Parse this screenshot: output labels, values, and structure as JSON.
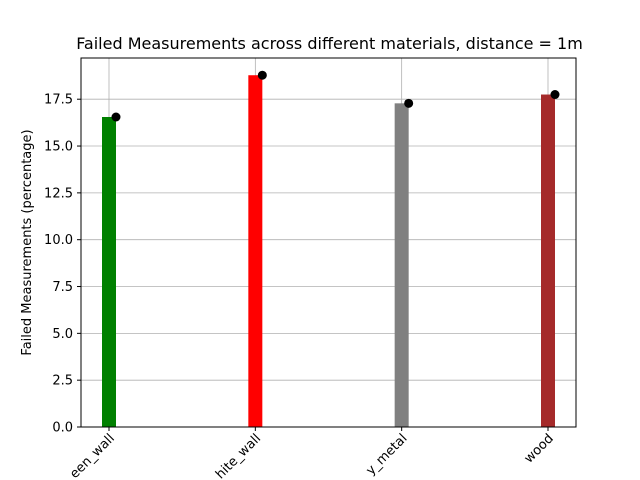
{
  "chart_data": {
    "type": "bar",
    "title": "Failed Measurements across different materials, distance = 1m",
    "xlabel": "",
    "ylabel": "Failed Measurements (percentage)",
    "categories": [
      "green_wall",
      "white_wall",
      "gray_metal",
      "wood"
    ],
    "x_tick_labels_visible": [
      "een_wall",
      "hite_wall",
      "y_metal",
      "wood"
    ],
    "values": [
      16.55,
      18.78,
      17.28,
      17.75
    ],
    "markers": [
      16.55,
      18.78,
      17.28,
      17.75
    ],
    "bar_colors": [
      "#008000",
      "#ff0000",
      "#808080",
      "#a52a2a"
    ],
    "marker_color": "#000000",
    "ylim": [
      0,
      19.7
    ],
    "yticks": [
      0.0,
      2.5,
      5.0,
      7.5,
      10.0,
      12.5,
      15.0,
      17.5
    ],
    "ytick_labels": [
      "0.0",
      "2.5",
      "5.0",
      "7.5",
      "10.0",
      "12.5",
      "15.0",
      "17.5"
    ],
    "grid": true,
    "legend": "none"
  }
}
